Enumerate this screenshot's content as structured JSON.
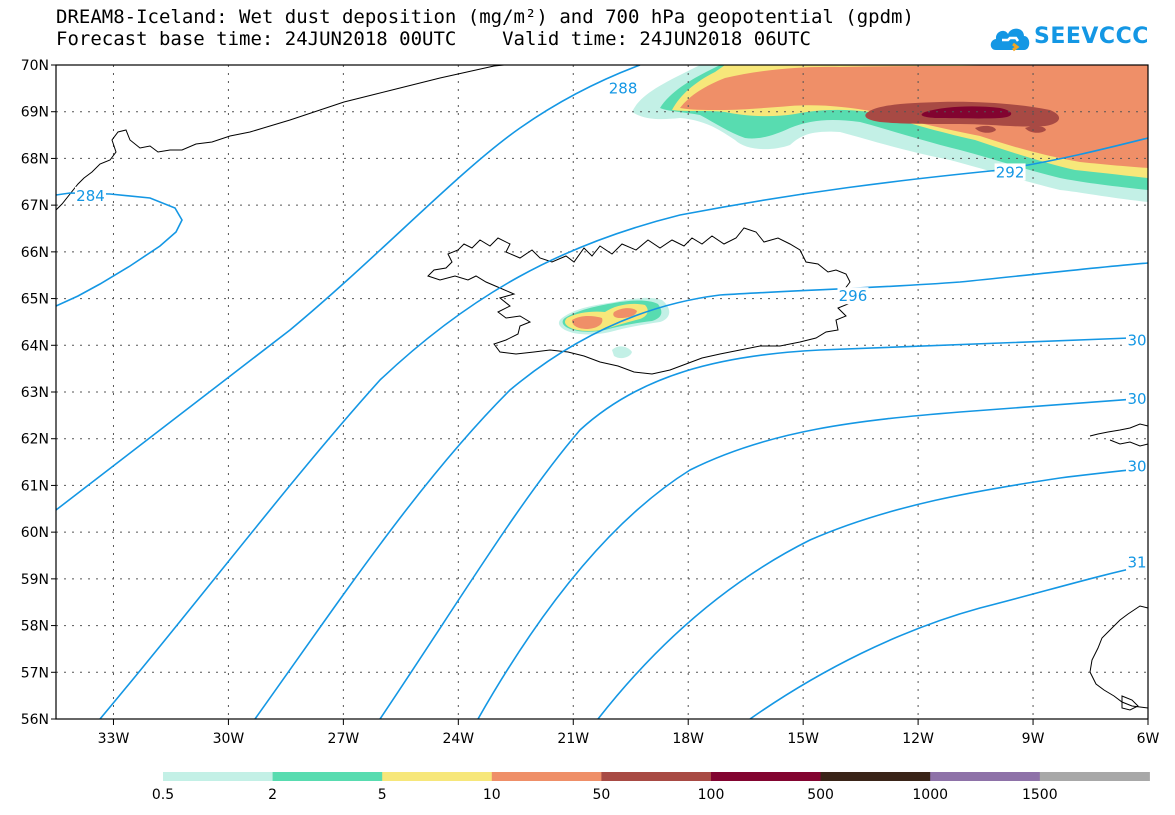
{
  "title_line1": "DREAM8-Iceland: Wet dust deposition (mg/m²) and 700 hPa geopotential (gpdm)",
  "title_line2": "Forecast base time: 24JUN2018 00UTC    Valid time: 24JUN2018 06UTC",
  "logo_text": "SEEVCCC",
  "logo_icon": "cloud-icon",
  "map": {
    "lat_range": [
      56,
      70
    ],
    "lon_range": [
      -34.5,
      -6
    ],
    "lat_ticks": [
      {
        "v": 70,
        "t": "70N"
      },
      {
        "v": 69,
        "t": "69N"
      },
      {
        "v": 68,
        "t": "68N"
      },
      {
        "v": 67,
        "t": "67N"
      },
      {
        "v": 66,
        "t": "66N"
      },
      {
        "v": 65,
        "t": "65N"
      },
      {
        "v": 64,
        "t": "64N"
      },
      {
        "v": 63,
        "t": "63N"
      },
      {
        "v": 62,
        "t": "62N"
      },
      {
        "v": 61,
        "t": "61N"
      },
      {
        "v": 60,
        "t": "60N"
      },
      {
        "v": 59,
        "t": "59N"
      },
      {
        "v": 58,
        "t": "58N"
      },
      {
        "v": 57,
        "t": "57N"
      },
      {
        "v": 56,
        "t": "56N"
      }
    ],
    "lon_ticks": [
      {
        "v": -33,
        "t": "33W"
      },
      {
        "v": -30,
        "t": "30W"
      },
      {
        "v": -27,
        "t": "27W"
      },
      {
        "v": -24,
        "t": "24W"
      },
      {
        "v": -21,
        "t": "21W"
      },
      {
        "v": -18,
        "t": "18W"
      },
      {
        "v": -15,
        "t": "15W"
      },
      {
        "v": -12,
        "t": "12W"
      },
      {
        "v": -9,
        "t": "9W"
      },
      {
        "v": -6,
        "t": "6W"
      }
    ],
    "contour_color": "#1497e4",
    "contour_labels": [
      {
        "t": "284",
        "lon": -33.6,
        "lat": 67.2
      },
      {
        "t": "288",
        "lon": -19.7,
        "lat": 69.5
      },
      {
        "t": "292",
        "lon": -9.6,
        "lat": 67.7
      },
      {
        "t": "296",
        "lon": -13.7,
        "lat": 65.05
      },
      {
        "t": "30",
        "lon": -6.2,
        "lat": 64.1
      },
      {
        "t": "30",
        "lon": -6.2,
        "lat": 62.85
      },
      {
        "t": "30",
        "lon": -6.2,
        "lat": 61.4
      },
      {
        "t": "31",
        "lon": -6.2,
        "lat": 59.35
      }
    ]
  },
  "legend": {
    "labels": [
      "0.5",
      "2",
      "5",
      "10",
      "50",
      "100",
      "500",
      "1000",
      "1500"
    ],
    "colors": [
      "#c3f0e6",
      "#58dcb0",
      "#f7e77a",
      "#ef8f68",
      "#a84a44",
      "#820430",
      "#3a2418",
      "#8e72a8",
      "#a8a8a8"
    ]
  }
}
